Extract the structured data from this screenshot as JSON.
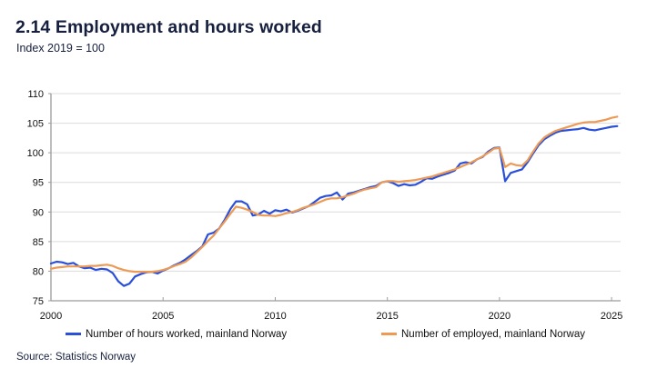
{
  "header": {
    "title": "2.14 Employment and hours worked",
    "subtitle": "Index 2019 = 100"
  },
  "source_note": "Source: Statistics Norway",
  "colors": {
    "title_text": "#161f3e",
    "hours_line": "#2a4fd9",
    "employed_line": "#ec9a55",
    "gridline": "#dcdcdc",
    "axis": "#9c9c9c",
    "tick_text": "#111111"
  },
  "chart_data": {
    "type": "line",
    "title": "2.14 Employment and hours worked",
    "subtitle": "Index 2019 = 100",
    "xlabel": "",
    "ylabel": "Index 2019 = 100",
    "xlim": [
      2000,
      2025.4
    ],
    "ylim": [
      75,
      110
    ],
    "yticks": [
      75,
      80,
      85,
      90,
      95,
      100,
      105,
      110
    ],
    "xticks": [
      2000,
      2005,
      2010,
      2015,
      2020,
      2025
    ],
    "grid": true,
    "legend_position": "bottom",
    "x": [
      2000,
      2000.25,
      2000.5,
      2000.75,
      2001,
      2001.25,
      2001.5,
      2001.75,
      2002,
      2002.25,
      2002.5,
      2002.75,
      2003,
      2003.25,
      2003.5,
      2003.75,
      2004,
      2004.25,
      2004.5,
      2004.75,
      2005,
      2005.25,
      2005.5,
      2005.75,
      2006,
      2006.25,
      2006.5,
      2006.75,
      2007,
      2007.25,
      2007.5,
      2007.75,
      2008,
      2008.25,
      2008.5,
      2008.75,
      2009,
      2009.25,
      2009.5,
      2009.75,
      2010,
      2010.25,
      2010.5,
      2010.75,
      2011,
      2011.25,
      2011.5,
      2011.75,
      2012,
      2012.25,
      2012.5,
      2012.75,
      2013,
      2013.25,
      2013.5,
      2013.75,
      2014,
      2014.25,
      2014.5,
      2014.75,
      2015,
      2015.25,
      2015.5,
      2015.75,
      2016,
      2016.25,
      2016.5,
      2016.75,
      2017,
      2017.25,
      2017.5,
      2017.75,
      2018,
      2018.25,
      2018.5,
      2018.75,
      2019,
      2019.25,
      2019.5,
      2019.75,
      2020,
      2020.25,
      2020.5,
      2020.75,
      2021,
      2021.25,
      2021.5,
      2021.75,
      2022,
      2022.25,
      2022.5,
      2022.75,
      2023,
      2023.25,
      2023.5,
      2023.75,
      2024,
      2024.25,
      2024.5,
      2024.75,
      2025,
      2025.25
    ],
    "series": [
      {
        "name": "Number of hours worked, mainland Norway",
        "color": "#2a4fd9",
        "values": [
          81.3,
          81.6,
          81.5,
          81.2,
          81.4,
          80.8,
          80.5,
          80.6,
          80.2,
          80.4,
          80.3,
          79.7,
          78.3,
          77.5,
          77.9,
          79.1,
          79.5,
          79.8,
          79.9,
          79.6,
          80.1,
          80.5,
          81.0,
          81.4,
          82.0,
          82.7,
          83.4,
          84.2,
          86.2,
          86.5,
          87.2,
          88.7,
          90.5,
          91.8,
          91.8,
          91.3,
          89.4,
          89.6,
          90.2,
          89.7,
          90.3,
          90.1,
          90.4,
          89.9,
          90.2,
          90.6,
          91.0,
          91.7,
          92.4,
          92.7,
          92.8,
          93.3,
          92.1,
          93.1,
          93.3,
          93.6,
          93.9,
          94.2,
          94.4,
          95.0,
          95.2,
          94.9,
          94.4,
          94.7,
          94.5,
          94.6,
          95.1,
          95.7,
          95.6,
          96.0,
          96.3,
          96.6,
          97.0,
          98.2,
          98.4,
          98.2,
          98.9,
          99.3,
          100.2,
          100.8,
          100.9,
          95.2,
          96.6,
          96.9,
          97.2,
          98.4,
          99.9,
          101.3,
          102.3,
          102.9,
          103.4,
          103.7,
          103.8,
          103.9,
          104.0,
          104.2,
          103.9,
          103.8,
          104.0,
          104.2,
          104.4,
          104.5
        ]
      },
      {
        "name": "Number of employed, mainland Norway",
        "color": "#ec9a55",
        "values": [
          80.4,
          80.6,
          80.7,
          80.8,
          80.8,
          80.8,
          80.8,
          80.9,
          80.9,
          81.0,
          81.1,
          80.9,
          80.5,
          80.2,
          80.0,
          79.9,
          79.9,
          79.9,
          79.9,
          80.0,
          80.2,
          80.5,
          80.9,
          81.2,
          81.6,
          82.3,
          83.2,
          84.1,
          85.1,
          86.0,
          87.2,
          88.4,
          89.7,
          90.9,
          90.7,
          90.4,
          90.0,
          89.5,
          89.4,
          89.4,
          89.3,
          89.5,
          89.8,
          90.0,
          90.3,
          90.7,
          91.0,
          91.3,
          91.7,
          92.1,
          92.3,
          92.3,
          92.5,
          92.8,
          93.1,
          93.5,
          93.8,
          94.0,
          94.2,
          95.0,
          95.2,
          95.2,
          95.1,
          95.2,
          95.3,
          95.4,
          95.6,
          95.8,
          96.0,
          96.3,
          96.6,
          96.9,
          97.2,
          97.6,
          98.0,
          98.4,
          98.9,
          99.4,
          100.0,
          100.7,
          100.8,
          97.6,
          98.2,
          97.9,
          97.8,
          98.7,
          100.2,
          101.6,
          102.6,
          103.2,
          103.7,
          104.0,
          104.3,
          104.6,
          104.9,
          105.1,
          105.2,
          105.2,
          105.4,
          105.6,
          105.9,
          106.1
        ]
      }
    ]
  }
}
